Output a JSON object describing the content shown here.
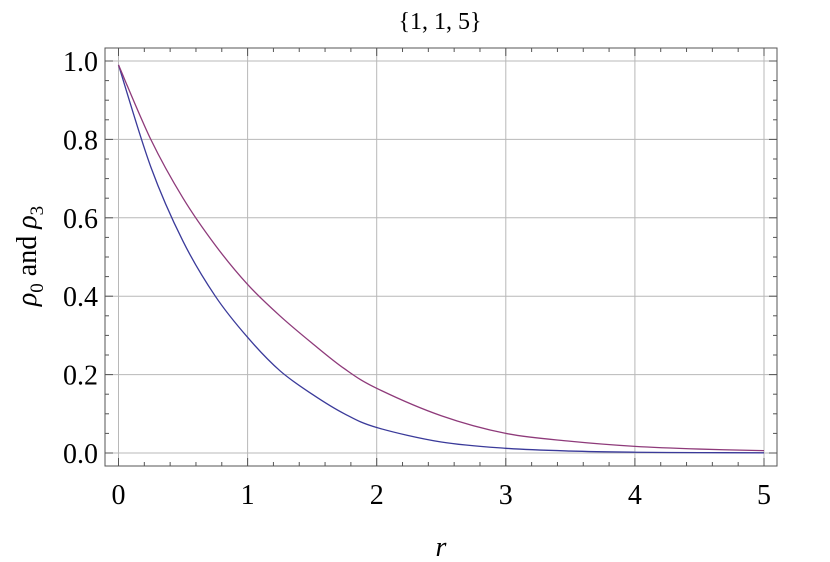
{
  "chart_data": {
    "type": "line",
    "title": "{1, 1, 5}",
    "xlabel": "r",
    "ylabel": {
      "symbol": "ρ",
      "first_sub": "0",
      "joiner": " and ",
      "second_sub": "3"
    },
    "xlim": [
      0,
      5
    ],
    "ylim": [
      0,
      1
    ],
    "x_ticks": [
      0,
      1,
      2,
      3,
      4,
      5
    ],
    "x_tick_labels": [
      "0",
      "1",
      "2",
      "3",
      "4",
      "5"
    ],
    "y_ticks": [
      0,
      0.2,
      0.4,
      0.6,
      0.8,
      1
    ],
    "y_tick_labels": [
      "0.0",
      "0.2",
      "0.4",
      "0.6",
      "0.8",
      "1.0"
    ],
    "grid": true,
    "x": [
      0,
      0.25,
      0.5,
      0.75,
      1,
      1.25,
      1.5,
      1.75,
      2,
      2.5,
      3,
      3.5,
      4,
      4.5,
      5
    ],
    "series": [
      {
        "color": "#3a3a9a",
        "values": [
          0.99,
          0.73,
          0.54,
          0.4,
          0.295,
          0.21,
          0.15,
          0.1,
          0.065,
          0.028,
          0.012,
          0.005,
          0.002,
          0.001,
          0.0005
        ]
      },
      {
        "color": "#8e3a7a",
        "values": [
          0.99,
          0.8,
          0.65,
          0.53,
          0.43,
          0.35,
          0.28,
          0.215,
          0.165,
          0.095,
          0.05,
          0.03,
          0.017,
          0.01,
          0.006
        ]
      }
    ]
  }
}
